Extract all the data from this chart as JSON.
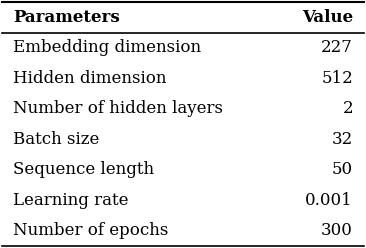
{
  "headers": [
    "Parameters",
    "Value"
  ],
  "rows": [
    [
      "Embedding dimension",
      "227"
    ],
    [
      "Hidden dimension",
      "512"
    ],
    [
      "Number of hidden layers",
      "2"
    ],
    [
      "Batch size",
      "32"
    ],
    [
      "Sequence length",
      "50"
    ],
    [
      "Learning rate",
      "0.001"
    ],
    [
      "Number of epochs",
      "300"
    ]
  ],
  "background_color": "#ffffff",
  "text_color": "#000000",
  "header_fontsize": 12,
  "cell_fontsize": 12,
  "figsize": [
    3.66,
    2.48
  ],
  "dpi": 100
}
